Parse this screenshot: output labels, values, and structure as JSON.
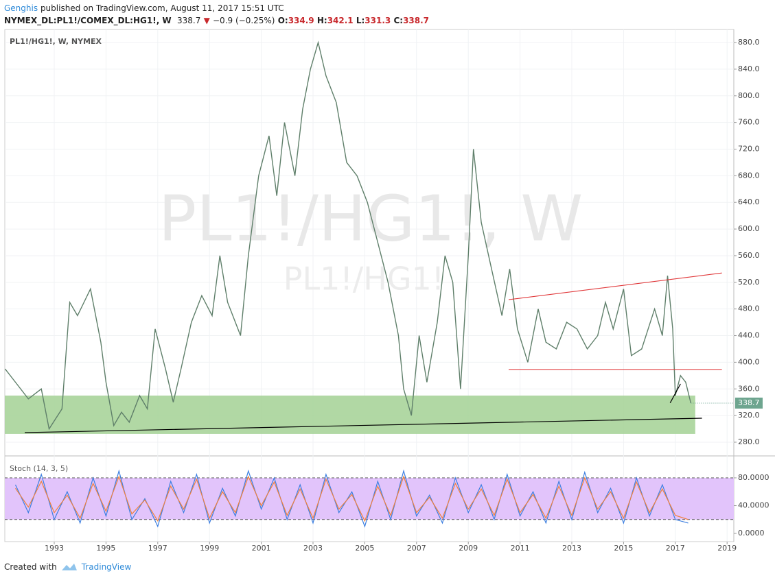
{
  "header": {
    "author": "Genghis",
    "published": "published on TradingView.com, August 11, 2017 15:51 UTC",
    "symbol": "NYMEX_DL:PL1!/COMEX_DL:HG1!, W",
    "last": "338.7",
    "change": "−0.9 (−0.25%)",
    "open_label": "O:",
    "open": "334.9",
    "high_label": "H:",
    "high": "342.1",
    "low_label": "L:",
    "low": "331.3",
    "close_label": "C:",
    "close": "338.7"
  },
  "footer": {
    "created": "Created with",
    "brand": "TradingView"
  },
  "chart_data": [
    {
      "type": "line",
      "title": "PL1!/HG1!, W, NYMEX",
      "watermark": "PL1!/HG1!, W",
      "watermark_small": "PL1!/HG1!",
      "x": [
        1991.1,
        1991.5,
        1992,
        1992.5,
        1992.8,
        1993.3,
        1993.6,
        1993.9,
        1994.4,
        1994.8,
        1995,
        1995.3,
        1995.6,
        1995.9,
        1996.3,
        1996.6,
        1996.9,
        1997.3,
        1997.6,
        1997.9,
        1998.3,
        1998.7,
        1999.1,
        1999.4,
        1999.7,
        2000.2,
        2000.5,
        2000.9,
        2001.3,
        2001.6,
        2001.9,
        2002.3,
        2002.6,
        2002.9,
        2003.2,
        2003.5,
        2003.9,
        2004.3,
        2004.7,
        2005.1,
        2005.5,
        2005.9,
        2006.3,
        2006.5,
        2006.8,
        2007.1,
        2007.4,
        2007.8,
        2008.1,
        2008.4,
        2008.7,
        2009,
        2009.2,
        2009.5,
        2009.9,
        2010.3,
        2010.6,
        2010.9,
        2011.3,
        2011.7,
        2012,
        2012.4,
        2012.8,
        2013.2,
        2013.6,
        2014,
        2014.3,
        2014.6,
        2015,
        2015.3,
        2015.7,
        2016.2,
        2016.5,
        2016.7,
        2016.9,
        2017,
        2017.2,
        2017.4,
        2017.6
      ],
      "series": [
        {
          "color": "#5f7f6a",
          "values": [
            390,
            370,
            345,
            360,
            300,
            330,
            490,
            470,
            510,
            430,
            370,
            305,
            325,
            310,
            350,
            330,
            450,
            390,
            340,
            390,
            460,
            500,
            470,
            560,
            490,
            440,
            560,
            680,
            740,
            650,
            760,
            680,
            780,
            840,
            880,
            830,
            790,
            700,
            680,
            640,
            580,
            520,
            440,
            360,
            320,
            440,
            370,
            460,
            560,
            520,
            360,
            560,
            720,
            610,
            540,
            470,
            540,
            450,
            400,
            480,
            430,
            420,
            460,
            450,
            420,
            440,
            490,
            450,
            510,
            410,
            420,
            480,
            440,
            530,
            450,
            350,
            380,
            370,
            338.7
          ]
        }
      ],
      "xlim": [
        1991.09,
        2019.26
      ],
      "ylim": [
        259.4,
        899.6
      ],
      "yticks": [
        {
          "value": 280,
          "label": "280.0"
        },
        {
          "value": 320,
          "label": "320.0"
        },
        {
          "value": 360,
          "label": "360.0"
        },
        {
          "value": 400,
          "label": "400.0"
        },
        {
          "value": 440,
          "label": "440.0"
        },
        {
          "value": 480,
          "label": "480.0"
        },
        {
          "value": 520,
          "label": "520.0"
        },
        {
          "value": 560,
          "label": "560.0"
        },
        {
          "value": 600,
          "label": "600.0"
        },
        {
          "value": 640,
          "label": "640.0"
        },
        {
          "value": 680,
          "label": "680.0"
        },
        {
          "value": 720,
          "label": "720.0"
        },
        {
          "value": 760,
          "label": "760.0"
        },
        {
          "value": 800,
          "label": "800.0"
        },
        {
          "value": 840,
          "label": "840.0"
        },
        {
          "value": 880,
          "label": "880.0"
        }
      ],
      "zone": {
        "x": [
          1991.09,
          2017.77
        ],
        "y": [
          292.4,
          350
        ],
        "color": "#a9d49a"
      },
      "trendlines": [
        {
          "x": [
            2010.56,
            2018.8
          ],
          "y": [
            494,
            534
          ],
          "color": "#e0383a"
        },
        {
          "x": [
            2010.56,
            2018.8
          ],
          "y": [
            389,
            389
          ],
          "color": "#e0383a"
        },
        {
          "x": [
            1991.86,
            2018.03
          ],
          "y": [
            294.4,
            316
          ],
          "color": "#000000"
        },
        {
          "x": [
            2016.8,
            2017.2
          ],
          "y": [
            339,
            367.5
          ],
          "color": "#000000"
        }
      ]
    },
    {
      "type": "stoch",
      "title": "Stoch (14, 3, 5)",
      "x": [
        1991.5,
        1992,
        1992.5,
        1993,
        1993.5,
        1994,
        1994.5,
        1995,
        1995.5,
        1996,
        1996.5,
        1997,
        1997.5,
        1998,
        1998.5,
        1999,
        1999.5,
        2000,
        2000.5,
        2001,
        2001.5,
        2002,
        2002.5,
        2003,
        2003.5,
        2004,
        2004.5,
        2005,
        2005.5,
        2006,
        2006.5,
        2007,
        2007.5,
        2008,
        2008.5,
        2009,
        2009.5,
        2010,
        2010.5,
        2011,
        2011.5,
        2012,
        2012.5,
        2013,
        2013.5,
        2014,
        2014.5,
        2015,
        2015.5,
        2016,
        2016.5,
        2017,
        2017.5
      ],
      "series": [
        {
          "color": "#3d7fe0",
          "values": [
            70,
            30,
            85,
            20,
            60,
            15,
            80,
            25,
            90,
            20,
            50,
            10,
            75,
            30,
            85,
            15,
            65,
            25,
            90,
            35,
            80,
            20,
            70,
            15,
            85,
            30,
            60,
            10,
            75,
            20,
            90,
            25,
            55,
            15,
            80,
            30,
            70,
            20,
            85,
            25,
            60,
            15,
            75,
            20,
            88,
            30,
            65,
            15,
            80,
            25,
            70,
            20,
            15
          ]
        },
        {
          "color": "#f0803c",
          "values": [
            65,
            38,
            75,
            30,
            55,
            22,
            72,
            32,
            82,
            28,
            48,
            18,
            68,
            35,
            78,
            22,
            60,
            30,
            82,
            40,
            74,
            26,
            64,
            22,
            78,
            35,
            56,
            18,
            68,
            26,
            82,
            30,
            52,
            22,
            72,
            35,
            64,
            26,
            78,
            30,
            56,
            22,
            68,
            26,
            80,
            35,
            60,
            22,
            74,
            30,
            64,
            26,
            20
          ]
        }
      ],
      "band": [
        20,
        80
      ],
      "band_color": "#e2c4fb",
      "xlim": [
        1991.09,
        2019.26
      ],
      "ylim": [
        -11.8,
        111.6
      ],
      "xticks": [
        1993,
        1995,
        1997,
        1999,
        2001,
        2003,
        2005,
        2007,
        2009,
        2011,
        2013,
        2015,
        2017,
        2019
      ],
      "yticks": [
        {
          "value": 0,
          "label": "0.0000"
        },
        {
          "value": 40,
          "label": "40.0000"
        },
        {
          "value": 80,
          "label": "80.0000"
        }
      ]
    }
  ]
}
